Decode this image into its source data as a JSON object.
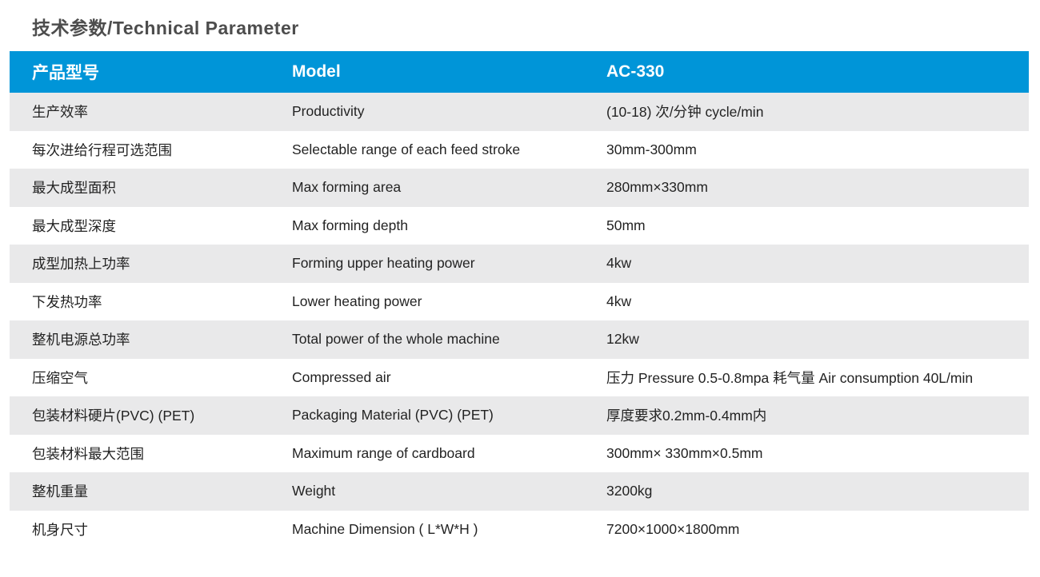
{
  "page": {
    "title": "技术参数/Technical Parameter"
  },
  "table": {
    "header": {
      "name_zh": "产品型号",
      "name_en": "Model",
      "value": "AC-330"
    },
    "rows": [
      {
        "name_zh": "生产效率",
        "name_en": "Productivity",
        "value": "(10-18) 次/分钟 cycle/min"
      },
      {
        "name_zh": "每次进给行程可选范围",
        "name_en": "Selectable range of each feed stroke",
        "value": "30mm-300mm"
      },
      {
        "name_zh": "最大成型面积",
        "name_en": "Max forming area",
        "value": "280mm×330mm"
      },
      {
        "name_zh": "最大成型深度",
        "name_en": "Max forming depth",
        "value": "50mm"
      },
      {
        "name_zh": "成型加热上功率",
        "name_en": "Forming upper heating power",
        "value": "4kw"
      },
      {
        "name_zh": "下发热功率",
        "name_en": "Lower heating power",
        "value": "4kw"
      },
      {
        "name_zh": "整机电源总功率",
        "name_en": "Total power of the whole machine",
        "value": "12kw"
      },
      {
        "name_zh": "压缩空气",
        "name_en": "Compressed air",
        "value": "压力 Pressure 0.5-0.8mpa 耗气量 Air consumption 40L/min"
      },
      {
        "name_zh": "包装材料硬片(PVC) (PET)",
        "name_en": "Packaging Material (PVC) (PET)",
        "value": "厚度要求0.2mm-0.4mm内"
      },
      {
        "name_zh": "包装材料最大范围",
        "name_en": "Maximum range of cardboard",
        "value": "300mm× 330mm×0.5mm"
      },
      {
        "name_zh": "整机重量",
        "name_en": "Weight",
        "value": "3200kg"
      },
      {
        "name_zh": "机身尺寸",
        "name_en": "Machine Dimension ( L*W*H )",
        "value": "7200×1000×1800mm"
      }
    ]
  },
  "colors": {
    "header_bg": "#0095d8",
    "header_text": "#ffffff",
    "row_alt_bg": "#e9e9ea",
    "title_color": "#4d4d4d",
    "text_color": "#232323"
  }
}
